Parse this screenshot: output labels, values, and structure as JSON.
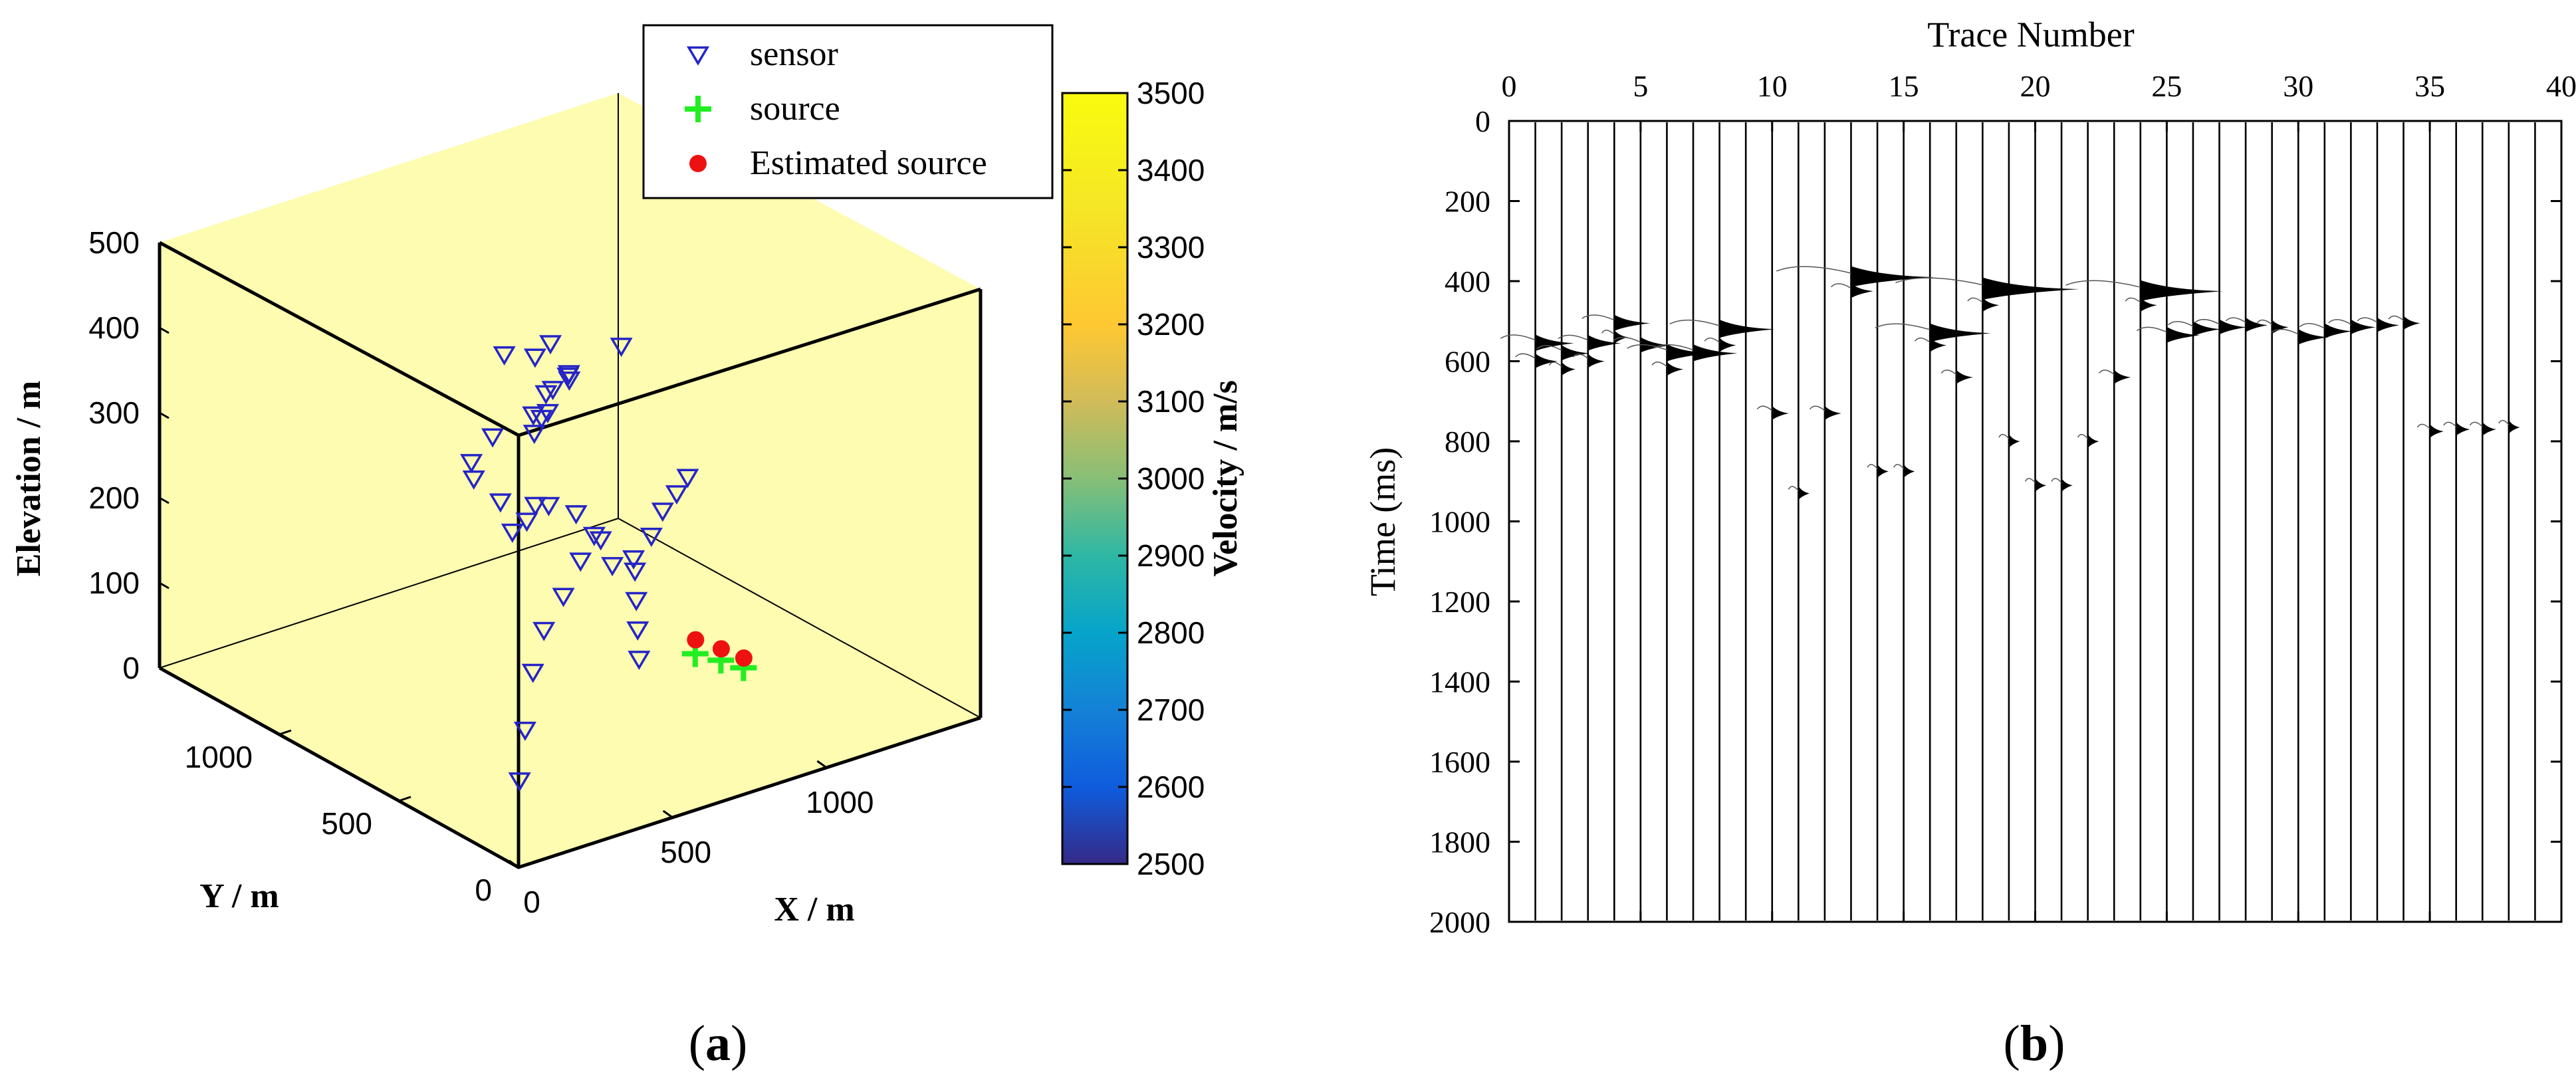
{
  "panel_a": {
    "label": "a",
    "chart_data": {
      "type": "scatter3d",
      "title": "",
      "xlabel": "X / m",
      "ylabel": "Y / m",
      "zlabel": "Elevation / m",
      "xlim": [
        0,
        1500
      ],
      "ylim": [
        0,
        1500
      ],
      "zlim": [
        0,
        500
      ],
      "x_ticks": [
        "0",
        "500",
        "1000"
      ],
      "y_ticks": [
        "0",
        "500",
        "1000"
      ],
      "z_ticks": [
        "0",
        "100",
        "200",
        "300",
        "400",
        "500"
      ],
      "box_color": "#fdfcb0",
      "legend": {
        "position": "top-center",
        "entries": [
          {
            "label": "sensor",
            "marker": "triangle-down",
            "color": "#2424c8"
          },
          {
            "label": "source",
            "marker": "plus",
            "color": "#22ee22"
          },
          {
            "label": "Estimated source",
            "marker": "dot",
            "color": "#ee1111"
          }
        ]
      },
      "colorbar": {
        "label": "Velocity / m/s",
        "min": 2500,
        "max": 3500,
        "ticks": [
          "3500",
          "3400",
          "3300",
          "3200",
          "3100",
          "3000",
          "2900",
          "2800",
          "2700",
          "2600",
          "2500"
        ]
      },
      "series": [
        {
          "name": "sensor",
          "marker": "triangle-down",
          "color": "#2424c8",
          "points": [
            [
              80,
              300,
              420
            ],
            [
              150,
              380,
              380
            ],
            [
              250,
              430,
              410
            ],
            [
              380,
              420,
              490
            ],
            [
              420,
              600,
              460
            ],
            [
              230,
              200,
              470
            ],
            [
              160,
              140,
              470
            ],
            [
              120,
              230,
              380
            ],
            [
              210,
              200,
              370
            ],
            [
              300,
              260,
              350
            ],
            [
              260,
              300,
              330
            ],
            [
              190,
              270,
              330
            ],
            [
              330,
              310,
              470
            ],
            [
              360,
              320,
              470
            ],
            [
              320,
              350,
              440
            ],
            [
              390,
              380,
              430
            ],
            [
              420,
              330,
              480
            ],
            [
              440,
              360,
              470
            ],
            [
              460,
              380,
              460
            ],
            [
              430,
              420,
              500
            ],
            [
              420,
              300,
              320
            ],
            [
              460,
              200,
              270
            ],
            [
              440,
              250,
              300
            ],
            [
              380,
              230,
              280
            ],
            [
              340,
              250,
              240
            ],
            [
              300,
              280,
              200
            ],
            [
              280,
              300,
              150
            ],
            [
              270,
              320,
              80
            ],
            [
              260,
              330,
              20
            ],
            [
              500,
              300,
              280
            ],
            [
              560,
              240,
              260
            ],
            [
              580,
              260,
              240
            ],
            [
              600,
              280,
              200
            ],
            [
              620,
              300,
              160
            ],
            [
              640,
              320,
              120
            ],
            [
              670,
              260,
              300
            ],
            [
              700,
              240,
              320
            ],
            [
              720,
              220,
              340
            ],
            [
              660,
              420,
              470
            ],
            [
              680,
              320,
              260
            ]
          ]
        },
        {
          "name": "source",
          "marker": "plus",
          "color": "#22ee22",
          "points": [
            [
              900,
              420,
              80
            ],
            [
              960,
              390,
              70
            ],
            [
              1010,
              360,
              60
            ]
          ]
        },
        {
          "name": "Estimated source",
          "marker": "dot",
          "color": "#ee1111",
          "points": [
            [
              905,
              425,
              95
            ],
            [
              965,
              395,
              82
            ],
            [
              1015,
              365,
              70
            ]
          ]
        }
      ]
    }
  },
  "panel_b": {
    "label": "b",
    "chart_data": {
      "type": "seismic-wiggle",
      "title": "",
      "xlabel": "Trace Number",
      "ylabel": "Time (ms)",
      "xlim": [
        0,
        40
      ],
      "ylim": [
        2000,
        0
      ],
      "x_axis_position": "top",
      "x_ticks": [
        "0",
        "5",
        "10",
        "15",
        "20",
        "25",
        "30",
        "35",
        "40"
      ],
      "y_ticks": [
        "0",
        "200",
        "400",
        "600",
        "800",
        "1000",
        "1200",
        "1400",
        "1600",
        "1800",
        "2000"
      ],
      "trace_count": 39,
      "wiggle_color": "#000000",
      "arrivals": [
        {
          "trace": 1,
          "time": 555,
          "amp": 1.4
        },
        {
          "trace": 1,
          "time": 600,
          "amp": 0.8
        },
        {
          "trace": 2,
          "time": 580,
          "amp": 1.0
        },
        {
          "trace": 2,
          "time": 620,
          "amp": 0.5
        },
        {
          "trace": 3,
          "time": 555,
          "amp": 1.2
        },
        {
          "trace": 3,
          "time": 600,
          "amp": 0.6
        },
        {
          "trace": 4,
          "time": 505,
          "amp": 1.3
        },
        {
          "trace": 4,
          "time": 540,
          "amp": 0.5
        },
        {
          "trace": 5,
          "time": 560,
          "amp": 1.1
        },
        {
          "trace": 6,
          "time": 580,
          "amp": 1.6
        },
        {
          "trace": 6,
          "time": 620,
          "amp": 0.6
        },
        {
          "trace": 7,
          "time": 580,
          "amp": 1.6
        },
        {
          "trace": 8,
          "time": 520,
          "amp": 2.0
        },
        {
          "trace": 8,
          "time": 560,
          "amp": 0.6
        },
        {
          "trace": 10,
          "time": 730,
          "amp": 0.6
        },
        {
          "trace": 12,
          "time": 730,
          "amp": 0.6
        },
        {
          "trace": 11,
          "time": 930,
          "amp": 0.4
        },
        {
          "trace": 13,
          "time": 390,
          "amp": 3.0
        },
        {
          "trace": 13,
          "time": 425,
          "amp": 0.8
        },
        {
          "trace": 14,
          "time": 875,
          "amp": 0.4
        },
        {
          "trace": 15,
          "time": 875,
          "amp": 0.4
        },
        {
          "trace": 16,
          "time": 530,
          "amp": 2.2
        },
        {
          "trace": 16,
          "time": 560,
          "amp": 0.6
        },
        {
          "trace": 17,
          "time": 640,
          "amp": 0.6
        },
        {
          "trace": 18,
          "time": 420,
          "amp": 3.5
        },
        {
          "trace": 18,
          "time": 460,
          "amp": 0.6
        },
        {
          "trace": 19,
          "time": 800,
          "amp": 0.4
        },
        {
          "trace": 20,
          "time": 910,
          "amp": 0.4
        },
        {
          "trace": 21,
          "time": 910,
          "amp": 0.4
        },
        {
          "trace": 22,
          "time": 800,
          "amp": 0.4
        },
        {
          "trace": 23,
          "time": 640,
          "amp": 0.6
        },
        {
          "trace": 24,
          "time": 425,
          "amp": 3.0
        },
        {
          "trace": 24,
          "time": 460,
          "amp": 0.6
        },
        {
          "trace": 25,
          "time": 535,
          "amp": 1.2
        },
        {
          "trace": 26,
          "time": 520,
          "amp": 1.0
        },
        {
          "trace": 27,
          "time": 515,
          "amp": 1.0
        },
        {
          "trace": 28,
          "time": 510,
          "amp": 0.8
        },
        {
          "trace": 29,
          "time": 515,
          "amp": 0.6
        },
        {
          "trace": 30,
          "time": 540,
          "amp": 1.1
        },
        {
          "trace": 31,
          "time": 525,
          "amp": 1.0
        },
        {
          "trace": 32,
          "time": 515,
          "amp": 0.9
        },
        {
          "trace": 33,
          "time": 510,
          "amp": 0.8
        },
        {
          "trace": 34,
          "time": 505,
          "amp": 0.6
        },
        {
          "trace": 35,
          "time": 775,
          "amp": 0.5
        },
        {
          "trace": 36,
          "time": 770,
          "amp": 0.5
        },
        {
          "trace": 37,
          "time": 770,
          "amp": 0.5
        },
        {
          "trace": 38,
          "time": 765,
          "amp": 0.4
        }
      ]
    }
  }
}
